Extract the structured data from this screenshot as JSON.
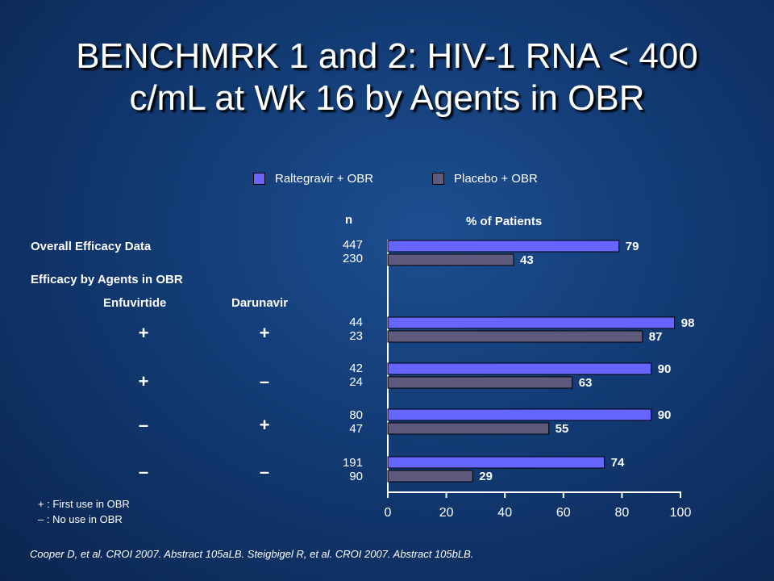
{
  "title_line1": "BENCHMRK 1 and 2: HIV-1 RNA < 400",
  "title_line2": "c/mL at Wk 16 by Agents in OBR",
  "legend": [
    {
      "label": "Raltegravir + OBR",
      "color": "#6666ff"
    },
    {
      "label": "Placebo + OBR",
      "color": "#5e5a7e"
    }
  ],
  "n_header": "n",
  "pct_header": "% of Patients",
  "overall_label": "Overall Efficacy Data",
  "by_agents_label": "Efficacy by Agents in OBR",
  "col_enfuvirtide": "Enfuvirtide",
  "col_darunavir": "Darunavir",
  "groups": [
    {
      "enf": "",
      "dar": "",
      "n_ral": "447",
      "n_pla": "230"
    },
    {
      "enf": "+",
      "dar": "+",
      "n_ral": "44",
      "n_pla": "23"
    },
    {
      "enf": "+",
      "dar": "–",
      "n_ral": "42",
      "n_pla": "24"
    },
    {
      "enf": "–",
      "dar": "+",
      "n_ral": "80",
      "n_pla": "47"
    },
    {
      "enf": "–",
      "dar": "–",
      "n_ral": "191",
      "n_pla": "90"
    }
  ],
  "footnote_plus": "+ : First use in OBR",
  "footnote_minus": "– : No use in OBR",
  "source": "Cooper D, et al. CROI 2007. Abstract 105aLB. Steigbigel R, et al. CROI 2007. Abstract 105bLB.",
  "chart_data": {
    "type": "bar",
    "orientation": "horizontal",
    "categories": [
      "Overall",
      "Enfuvirtide + / Darunavir +",
      "Enfuvirtide + / Darunavir –",
      "Enfuvirtide – / Darunavir +",
      "Enfuvirtide – / Darunavir –"
    ],
    "series": [
      {
        "name": "Raltegravir + OBR",
        "values": [
          79,
          98,
          90,
          90,
          74
        ],
        "color": "#6666ff"
      },
      {
        "name": "Placebo + OBR",
        "values": [
          43,
          87,
          63,
          55,
          29
        ],
        "color": "#5e5a7e"
      }
    ],
    "xlabel": "% of Patients",
    "xlim": [
      0,
      100
    ],
    "xticks": [
      "0",
      "20",
      "40",
      "60",
      "80",
      "100"
    ],
    "legend_position": "top"
  }
}
